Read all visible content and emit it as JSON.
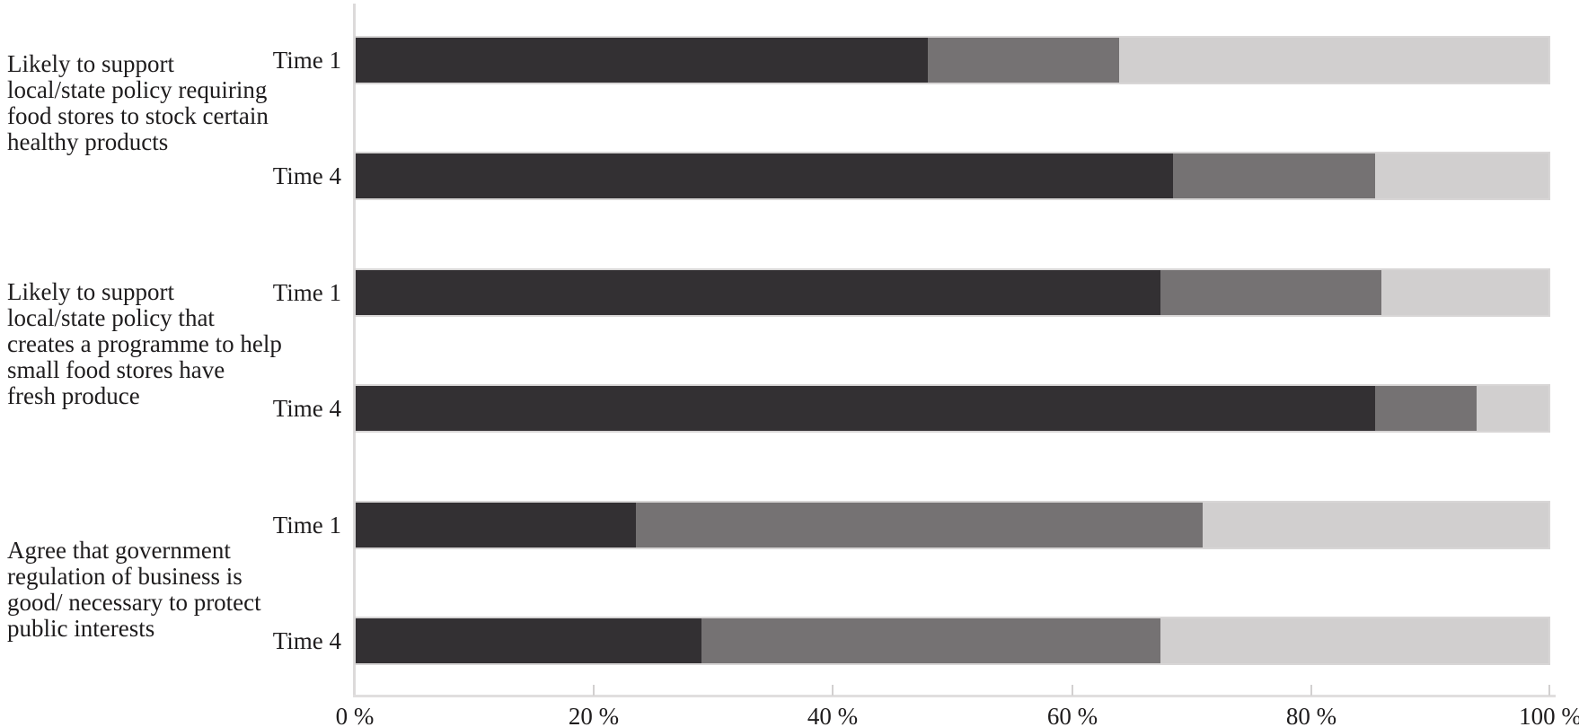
{
  "chart_data": {
    "type": "bar",
    "orientation": "horizontal",
    "stacked": true,
    "unit": "%",
    "xlim": [
      0,
      100
    ],
    "x_ticks": [
      "0 %",
      "20 %",
      "40 %",
      "60 %",
      "80 %",
      "100 %"
    ],
    "grid": false,
    "legend": "none visible",
    "segment_names": [
      "dark-gray",
      "medium-gray",
      "light-gray"
    ],
    "segment_colors": [
      "#333033",
      "#757273",
      "#d1cfcf"
    ],
    "axis_color": "#dcdada",
    "text_color": "#1e1c1d",
    "groups": [
      {
        "label": "Likely to support local/state policy requiring food stores to stock certain healthy products",
        "label_lines": [
          "Likely to support",
          "local/state policy requiring",
          "food stores to stock certain",
          "healthy products"
        ],
        "bars": [
          {
            "label": "Time 1",
            "values": [
              48,
              16,
              36
            ]
          },
          {
            "label": "Time 4",
            "values": [
              68.5,
              17,
              14.5
            ]
          }
        ]
      },
      {
        "label": "Likely to support local/state policy that creates a programme to help small food stores have fresh produce",
        "label_lines": [
          "Likely to support",
          "local/state policy that",
          "creates a programme to help",
          "small food stores have",
          "fresh produce"
        ],
        "bars": [
          {
            "label": "Time 1",
            "values": [
              67.5,
              18.5,
              14
            ]
          },
          {
            "label": "Time 4",
            "values": [
              85.5,
              8.5,
              6
            ]
          }
        ]
      },
      {
        "label": "Agree that government regulation of business is good/ necessary to protect public interests",
        "label_lines": [
          "Agree that government",
          "regulation of business is",
          "good/ necessary to protect",
          "public interests"
        ],
        "bars": [
          {
            "label": "Time 1",
            "values": [
              23.5,
              47.5,
              29
            ]
          },
          {
            "label": "Time 4",
            "values": [
              29,
              38.5,
              32.5
            ]
          }
        ]
      }
    ]
  }
}
